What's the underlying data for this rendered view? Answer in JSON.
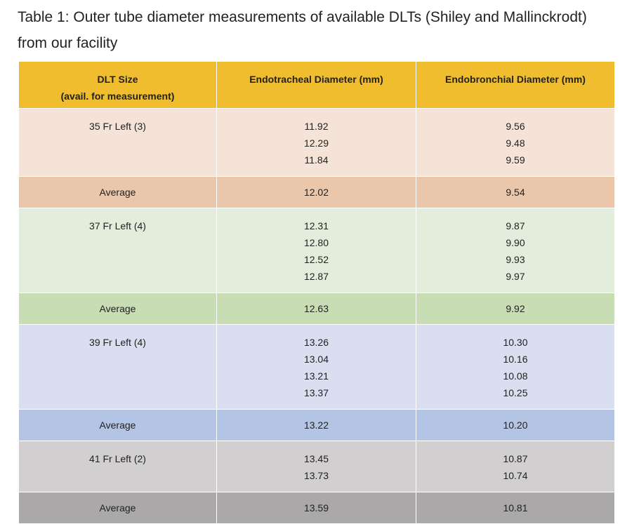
{
  "caption": "Table 1: Outer tube diameter measurements of available DLTs (Shiley and Mallinckrodt) from our facility",
  "headers": {
    "col1_line1": "DLT Size",
    "col1_line2": "(avail. for measurement)",
    "col2": "Endotracheal Diameter (mm)",
    "col3": "Endobronchial Diameter (mm)"
  },
  "groups": [
    {
      "size": "35 Fr Left (3)",
      "endotracheal": [
        "11.92",
        "12.29",
        "11.84"
      ],
      "endobronchial": [
        "9.56",
        "9.48",
        "9.59"
      ],
      "avg_label": "Average",
      "avg_endotracheal": "12.02",
      "avg_endobronchial": "9.54"
    },
    {
      "size": "37 Fr Left (4)",
      "endotracheal": [
        "12.31",
        "12.80",
        "12.52",
        "12.87"
      ],
      "endobronchial": [
        "9.87",
        "9.90",
        "9.93",
        "9.97"
      ],
      "avg_label": "Average",
      "avg_endotracheal": "12.63",
      "avg_endobronchial": "9.92"
    },
    {
      "size": "39 Fr Left (4)",
      "endotracheal": [
        "13.26",
        "13.04",
        "13.21",
        "13.37"
      ],
      "endobronchial": [
        "10.30",
        "10.16",
        "10.08",
        "10.25"
      ],
      "avg_label": "Average",
      "avg_endotracheal": "13.22",
      "avg_endobronchial": "10.20"
    },
    {
      "size": "41 Fr Left (2)",
      "endotracheal": [
        "13.45",
        "13.73"
      ],
      "endobronchial": [
        "10.87",
        "10.74"
      ],
      "avg_label": "Average",
      "avg_endotracheal": "13.59",
      "avg_endobronchial": "10.81"
    }
  ]
}
